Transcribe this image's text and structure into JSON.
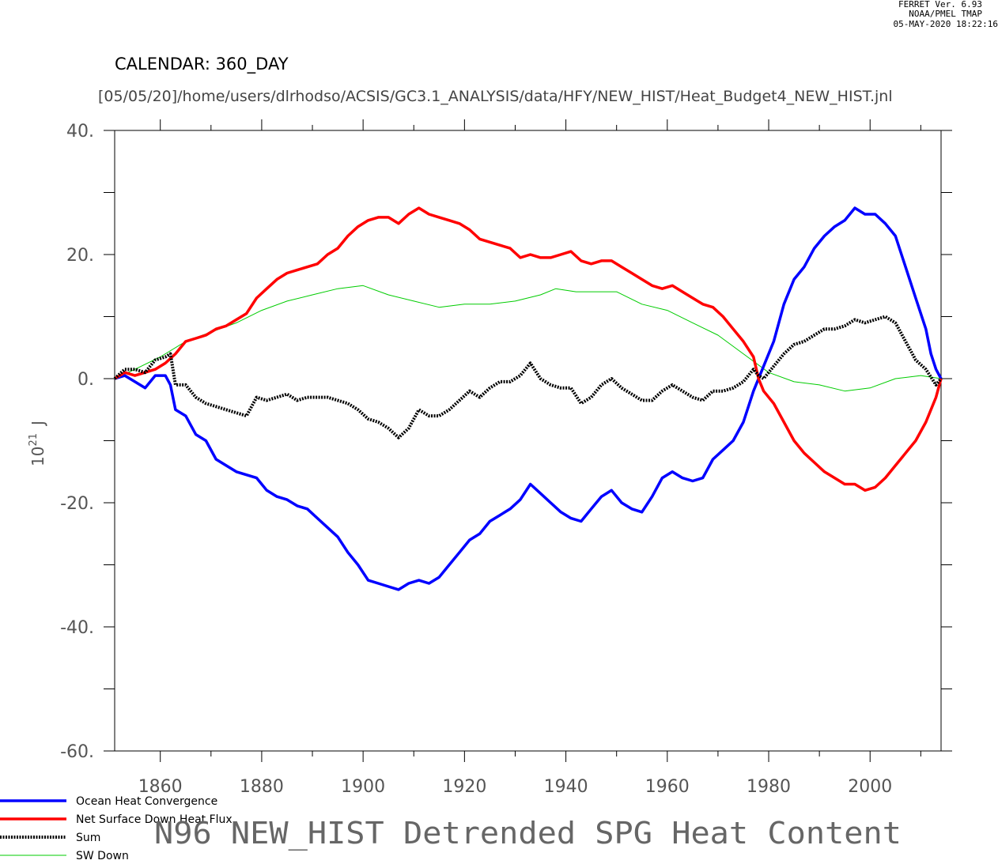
{
  "header": {
    "ferret_version": "FERRET Ver. 6.93",
    "ferret_org": "NOAA/PMEL TMAP",
    "ferret_timestamp": "05-MAY-2020 18:22:16",
    "calendar": "CALENDAR: 360_DAY",
    "journal_path": "[05/05/20]/home/users/dlrhodso/ACSIS/GC3.1_ANALYSIS/data/HFY/NEW_HIST/Heat_Budget4_NEW_HIST.jnl"
  },
  "chart_data": {
    "type": "line",
    "title": "N96 NEW_HIST Detrended SPG Heat Content",
    "xlabel": "",
    "ylabel_base": "10",
    "ylabel_exp": "21",
    "ylabel_unit": "J",
    "xlim": [
      1851,
      2014
    ],
    "ylim": [
      -60,
      40
    ],
    "x_ticks": [
      1860,
      1880,
      1900,
      1920,
      1940,
      1960,
      1980,
      2000
    ],
    "x_tick_labels": [
      "1860",
      "1880",
      "1900",
      "1920",
      "1940",
      "1960",
      "1980",
      "2000"
    ],
    "y_ticks": [
      -60,
      -40,
      -20,
      0,
      20,
      40
    ],
    "y_tick_labels": [
      "-60.",
      "-40.",
      "-20.",
      "0.",
      "20.",
      "40."
    ],
    "legend_position": "bottom-left",
    "series": [
      {
        "name": "Ocean Heat Convergence",
        "color": "#0000ff",
        "style": "solid-thick",
        "points": [
          [
            1851,
            0
          ],
          [
            1853,
            0.5
          ],
          [
            1855,
            -0.5
          ],
          [
            1857,
            -1.5
          ],
          [
            1859,
            0.5
          ],
          [
            1861,
            0.5
          ],
          [
            1862,
            -1
          ],
          [
            1863,
            -5
          ],
          [
            1865,
            -6
          ],
          [
            1867,
            -9
          ],
          [
            1869,
            -10
          ],
          [
            1871,
            -13
          ],
          [
            1873,
            -14
          ],
          [
            1875,
            -15
          ],
          [
            1877,
            -15.5
          ],
          [
            1879,
            -16
          ],
          [
            1881,
            -18
          ],
          [
            1883,
            -19
          ],
          [
            1885,
            -19.5
          ],
          [
            1887,
            -20.5
          ],
          [
            1889,
            -21
          ],
          [
            1891,
            -22.5
          ],
          [
            1893,
            -24
          ],
          [
            1895,
            -25.5
          ],
          [
            1897,
            -28
          ],
          [
            1899,
            -30
          ],
          [
            1901,
            -32.5
          ],
          [
            1903,
            -33
          ],
          [
            1905,
            -33.5
          ],
          [
            1907,
            -34
          ],
          [
            1909,
            -33
          ],
          [
            1911,
            -32.5
          ],
          [
            1913,
            -33
          ],
          [
            1915,
            -32
          ],
          [
            1917,
            -30
          ],
          [
            1919,
            -28
          ],
          [
            1921,
            -26
          ],
          [
            1923,
            -25
          ],
          [
            1925,
            -23
          ],
          [
            1927,
            -22
          ],
          [
            1929,
            -21
          ],
          [
            1931,
            -19.5
          ],
          [
            1933,
            -17
          ],
          [
            1935,
            -18.5
          ],
          [
            1937,
            -20
          ],
          [
            1939,
            -21.5
          ],
          [
            1941,
            -22.5
          ],
          [
            1943,
            -23
          ],
          [
            1945,
            -21
          ],
          [
            1947,
            -19
          ],
          [
            1949,
            -18
          ],
          [
            1951,
            -20
          ],
          [
            1953,
            -21
          ],
          [
            1955,
            -21.5
          ],
          [
            1957,
            -19
          ],
          [
            1959,
            -16
          ],
          [
            1961,
            -15
          ],
          [
            1963,
            -16
          ],
          [
            1965,
            -16.5
          ],
          [
            1967,
            -16
          ],
          [
            1969,
            -13
          ],
          [
            1971,
            -11.5
          ],
          [
            1973,
            -10
          ],
          [
            1975,
            -7
          ],
          [
            1977,
            -2
          ],
          [
            1978,
            0
          ],
          [
            1979,
            2
          ],
          [
            1981,
            6
          ],
          [
            1983,
            12
          ],
          [
            1985,
            16
          ],
          [
            1987,
            18
          ],
          [
            1989,
            21
          ],
          [
            1991,
            23
          ],
          [
            1993,
            24.5
          ],
          [
            1995,
            25.5
          ],
          [
            1997,
            27.5
          ],
          [
            1999,
            26.5
          ],
          [
            2001,
            26.5
          ],
          [
            2003,
            25
          ],
          [
            2005,
            23
          ],
          [
            2007,
            18
          ],
          [
            2009,
            13
          ],
          [
            2011,
            8
          ],
          [
            2012,
            4
          ],
          [
            2013,
            1.5
          ],
          [
            2014,
            0
          ]
        ]
      },
      {
        "name": "Net Surface Down Heat Flux",
        "color": "#ff0000",
        "style": "solid-thick",
        "points": [
          [
            1851,
            0
          ],
          [
            1853,
            1
          ],
          [
            1855,
            0.5
          ],
          [
            1857,
            1
          ],
          [
            1859,
            1.5
          ],
          [
            1861,
            2.5
          ],
          [
            1863,
            4
          ],
          [
            1865,
            6
          ],
          [
            1867,
            6.5
          ],
          [
            1869,
            7
          ],
          [
            1871,
            8
          ],
          [
            1873,
            8.5
          ],
          [
            1875,
            9.5
          ],
          [
            1877,
            10.5
          ],
          [
            1879,
            13
          ],
          [
            1881,
            14.5
          ],
          [
            1883,
            16
          ],
          [
            1885,
            17
          ],
          [
            1887,
            17.5
          ],
          [
            1889,
            18
          ],
          [
            1891,
            18.5
          ],
          [
            1893,
            20
          ],
          [
            1895,
            21
          ],
          [
            1897,
            23
          ],
          [
            1899,
            24.5
          ],
          [
            1901,
            25.5
          ],
          [
            1903,
            26
          ],
          [
            1905,
            26
          ],
          [
            1907,
            25
          ],
          [
            1909,
            26.5
          ],
          [
            1911,
            27.5
          ],
          [
            1913,
            26.5
          ],
          [
            1915,
            26
          ],
          [
            1917,
            25.5
          ],
          [
            1919,
            25
          ],
          [
            1921,
            24
          ],
          [
            1923,
            22.5
          ],
          [
            1925,
            22
          ],
          [
            1927,
            21.5
          ],
          [
            1929,
            21
          ],
          [
            1931,
            19.5
          ],
          [
            1933,
            20
          ],
          [
            1935,
            19.5
          ],
          [
            1937,
            19.5
          ],
          [
            1939,
            20
          ],
          [
            1941,
            20.5
          ],
          [
            1943,
            19
          ],
          [
            1945,
            18.5
          ],
          [
            1947,
            19
          ],
          [
            1949,
            19
          ],
          [
            1951,
            18
          ],
          [
            1953,
            17
          ],
          [
            1955,
            16
          ],
          [
            1957,
            15
          ],
          [
            1959,
            14.5
          ],
          [
            1961,
            15
          ],
          [
            1963,
            14
          ],
          [
            1965,
            13
          ],
          [
            1967,
            12
          ],
          [
            1969,
            11.5
          ],
          [
            1971,
            10
          ],
          [
            1973,
            8
          ],
          [
            1975,
            6
          ],
          [
            1977,
            3.5
          ],
          [
            1978,
            0
          ],
          [
            1979,
            -2
          ],
          [
            1981,
            -4
          ],
          [
            1983,
            -7
          ],
          [
            1985,
            -10
          ],
          [
            1987,
            -12
          ],
          [
            1989,
            -13.5
          ],
          [
            1991,
            -15
          ],
          [
            1993,
            -16
          ],
          [
            1995,
            -17
          ],
          [
            1997,
            -17
          ],
          [
            1999,
            -18
          ],
          [
            2001,
            -17.5
          ],
          [
            2003,
            -16
          ],
          [
            2005,
            -14
          ],
          [
            2007,
            -12
          ],
          [
            2009,
            -10
          ],
          [
            2011,
            -7
          ],
          [
            2013,
            -3
          ],
          [
            2014,
            0
          ]
        ]
      },
      {
        "name": "Sum",
        "color": "#000000",
        "style": "dotted-thick",
        "points": [
          [
            1851,
            0
          ],
          [
            1853,
            1.5
          ],
          [
            1855,
            1.5
          ],
          [
            1857,
            1
          ],
          [
            1859,
            3
          ],
          [
            1861,
            3.5
          ],
          [
            1862,
            4
          ],
          [
            1863,
            -1
          ],
          [
            1865,
            -1
          ],
          [
            1867,
            -3
          ],
          [
            1869,
            -4
          ],
          [
            1871,
            -4.5
          ],
          [
            1873,
            -5
          ],
          [
            1875,
            -5.5
          ],
          [
            1877,
            -6
          ],
          [
            1879,
            -3
          ],
          [
            1881,
            -3.5
          ],
          [
            1883,
            -3
          ],
          [
            1885,
            -2.5
          ],
          [
            1887,
            -3.5
          ],
          [
            1889,
            -3
          ],
          [
            1891,
            -3
          ],
          [
            1893,
            -3
          ],
          [
            1895,
            -3.5
          ],
          [
            1897,
            -4
          ],
          [
            1899,
            -5
          ],
          [
            1901,
            -6.5
          ],
          [
            1903,
            -7
          ],
          [
            1905,
            -8
          ],
          [
            1907,
            -9.5
          ],
          [
            1909,
            -8
          ],
          [
            1911,
            -5
          ],
          [
            1913,
            -6
          ],
          [
            1915,
            -6
          ],
          [
            1917,
            -5
          ],
          [
            1919,
            -3.5
          ],
          [
            1921,
            -2
          ],
          [
            1923,
            -3
          ],
          [
            1925,
            -1.5
          ],
          [
            1927,
            -0.5
          ],
          [
            1929,
            -0.5
          ],
          [
            1931,
            0.5
          ],
          [
            1933,
            2.5
          ],
          [
            1935,
            0
          ],
          [
            1937,
            -1
          ],
          [
            1939,
            -1.5
          ],
          [
            1941,
            -1.5
          ],
          [
            1943,
            -4
          ],
          [
            1945,
            -3
          ],
          [
            1947,
            -1
          ],
          [
            1949,
            0
          ],
          [
            1951,
            -1.5
          ],
          [
            1953,
            -2.5
          ],
          [
            1955,
            -3.5
          ],
          [
            1957,
            -3.5
          ],
          [
            1959,
            -2
          ],
          [
            1961,
            -1
          ],
          [
            1963,
            -2
          ],
          [
            1965,
            -3
          ],
          [
            1967,
            -3.5
          ],
          [
            1969,
            -2
          ],
          [
            1971,
            -2
          ],
          [
            1973,
            -1.5
          ],
          [
            1975,
            -0.5
          ],
          [
            1977,
            1.5
          ],
          [
            1978,
            0.5
          ],
          [
            1979,
            0
          ],
          [
            1981,
            2
          ],
          [
            1983,
            4
          ],
          [
            1985,
            5.5
          ],
          [
            1987,
            6
          ],
          [
            1989,
            7
          ],
          [
            1991,
            8
          ],
          [
            1993,
            8
          ],
          [
            1995,
            8.5
          ],
          [
            1997,
            9.5
          ],
          [
            1999,
            9
          ],
          [
            2001,
            9.5
          ],
          [
            2003,
            10
          ],
          [
            2005,
            9
          ],
          [
            2007,
            6
          ],
          [
            2009,
            3
          ],
          [
            2011,
            1.5
          ],
          [
            2013,
            -1
          ],
          [
            2014,
            0
          ]
        ]
      },
      {
        "name": "SW Down",
        "color": "#00cc00",
        "style": "solid-thin",
        "points": [
          [
            1851,
            0
          ],
          [
            1855,
            1.5
          ],
          [
            1860,
            3.5
          ],
          [
            1865,
            6
          ],
          [
            1870,
            7.5
          ],
          [
            1875,
            9
          ],
          [
            1880,
            11
          ],
          [
            1885,
            12.5
          ],
          [
            1890,
            13.5
          ],
          [
            1895,
            14.5
          ],
          [
            1900,
            15
          ],
          [
            1905,
            13.5
          ],
          [
            1910,
            12.5
          ],
          [
            1915,
            11.5
          ],
          [
            1920,
            12
          ],
          [
            1925,
            12
          ],
          [
            1930,
            12.5
          ],
          [
            1935,
            13.5
          ],
          [
            1938,
            14.5
          ],
          [
            1942,
            14
          ],
          [
            1946,
            14
          ],
          [
            1950,
            14
          ],
          [
            1955,
            12
          ],
          [
            1960,
            11
          ],
          [
            1965,
            9
          ],
          [
            1970,
            7
          ],
          [
            1975,
            4
          ],
          [
            1980,
            1
          ],
          [
            1985,
            -0.5
          ],
          [
            1990,
            -1
          ],
          [
            1995,
            -2
          ],
          [
            2000,
            -1.5
          ],
          [
            2005,
            0
          ],
          [
            2010,
            0.5
          ],
          [
            2014,
            0
          ]
        ]
      }
    ]
  },
  "legend": {
    "items": [
      "Ocean Heat Convergence",
      "Net Surface Down Heat Flux",
      "Sum",
      "SW Down"
    ]
  }
}
